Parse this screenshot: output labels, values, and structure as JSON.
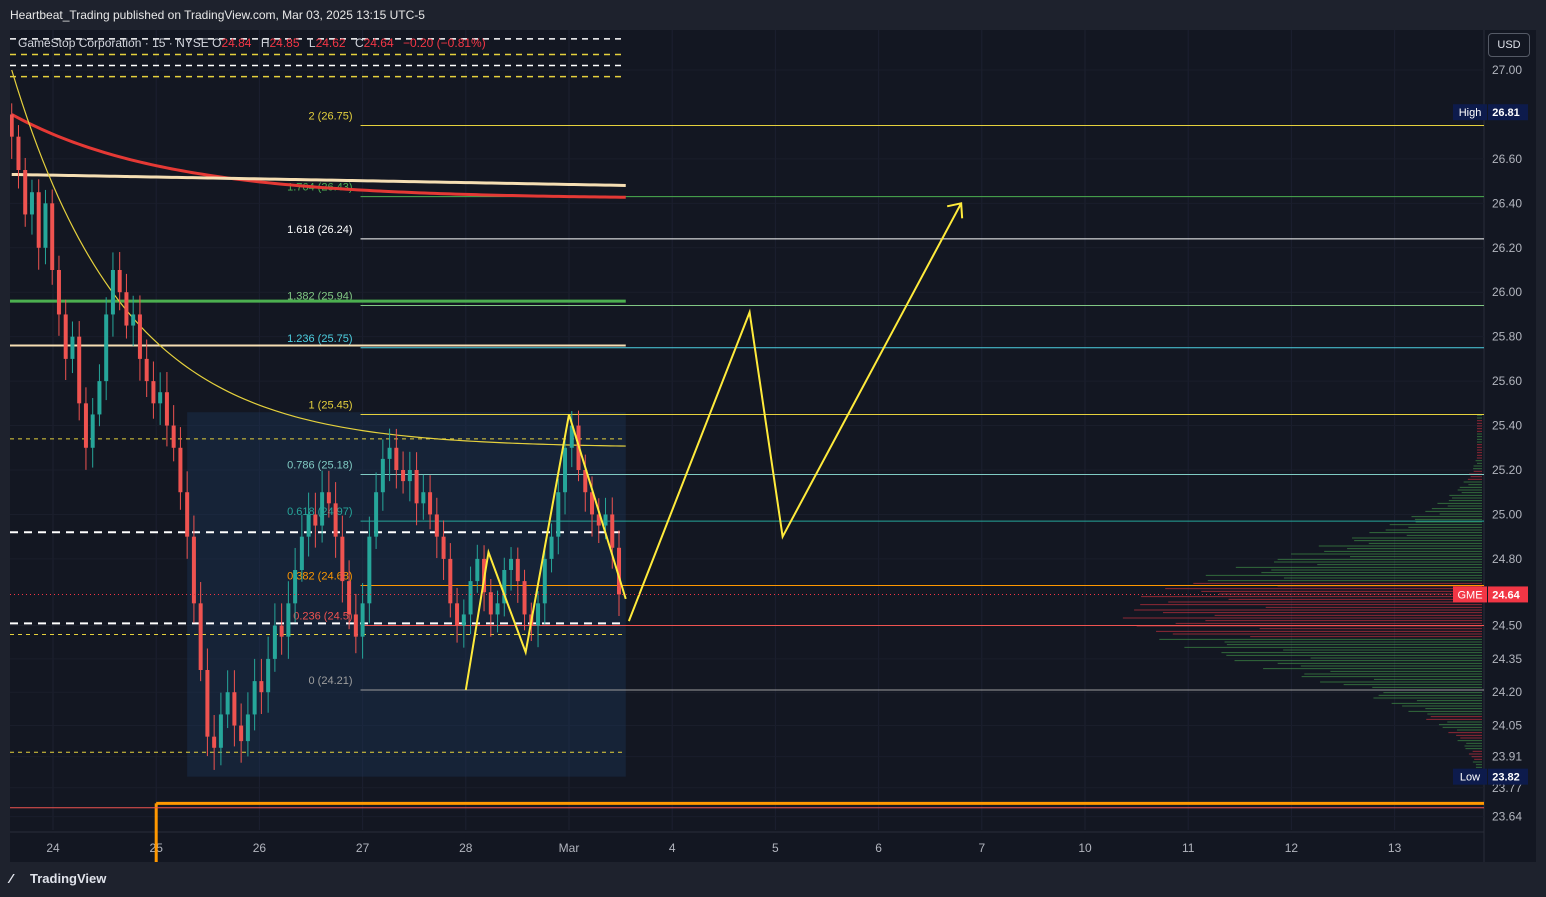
{
  "header": {
    "publish_text": "Heartbeat_Trading published on TradingView.com, Mar 03, 2025 13:15 UTC-5"
  },
  "legend": {
    "symbol_text": "GameStop Corporation · 15 · NYSE",
    "o_key": "O",
    "o_val": "24.84",
    "h_key": "H",
    "h_val": "24.85",
    "l_key": "L",
    "l_val": "24.62",
    "c_key": "C",
    "c_val": "24.64",
    "change": "−0.20 (−0.81%)"
  },
  "currency": "USD",
  "footer": {
    "logo_text": "TradingView"
  },
  "colors": {
    "background": "#131722",
    "up": "#26a69a",
    "down": "#ef5350",
    "fib_line": "#e5d13d",
    "projection": "#ffeb3b",
    "vwap_red": "#e53935",
    "ma_cream": "#f5deb3",
    "green_level": "#4caf50",
    "orange_level": "#ff9800"
  },
  "chart_data": {
    "type": "candlestick",
    "symbol": "GME",
    "interval": "15",
    "exchange": "NYSE",
    "ylim": [
      23.58,
      27.18
    ],
    "x_ticks": [
      {
        "label": "24",
        "day": 0
      },
      {
        "label": "25",
        "day": 1
      },
      {
        "label": "26",
        "day": 2
      },
      {
        "label": "27",
        "day": 3
      },
      {
        "label": "28",
        "day": 4
      },
      {
        "label": "Mar",
        "day": 5
      },
      {
        "label": "4",
        "day": 6
      },
      {
        "label": "5",
        "day": 7
      },
      {
        "label": "6",
        "day": 8
      },
      {
        "label": "7",
        "day": 9
      },
      {
        "label": "10",
        "day": 10
      },
      {
        "label": "11",
        "day": 11
      },
      {
        "label": "12",
        "day": 12
      },
      {
        "label": "13",
        "day": 13
      }
    ],
    "y_ticks": [
      "27.00",
      "26.60",
      "26.40",
      "26.20",
      "26.00",
      "25.80",
      "25.60",
      "25.40",
      "25.20",
      "25.00",
      "24.80",
      "24.50",
      "24.35",
      "24.20",
      "24.05",
      "23.91",
      "23.77",
      "23.64"
    ],
    "price_labels": [
      {
        "name": "High",
        "value": "26.81",
        "color": "#0d1b4c"
      },
      {
        "name": "GME",
        "value": "24.64",
        "color": "#f23645"
      },
      {
        "name": "Low",
        "value": "23.82",
        "color": "#0d1b4c"
      }
    ],
    "fib_levels": [
      {
        "label": "2 (26.75)",
        "ratio": "2",
        "price": 26.75,
        "color": "#e5d13d"
      },
      {
        "label": "1.764 (26.43)",
        "ratio": "1.764",
        "price": 26.43,
        "color": "#4caf50"
      },
      {
        "label": "1.618 (26.24)",
        "ratio": "1.618",
        "price": 26.24,
        "color": "#ffffff"
      },
      {
        "label": "1.382 (25.94)",
        "ratio": "1.382",
        "price": 25.94,
        "color": "#81c784"
      },
      {
        "label": "1.236 (25.75)",
        "ratio": "1.236",
        "price": 25.75,
        "color": "#4dd0e1"
      },
      {
        "label": "1 (25.45)",
        "ratio": "1",
        "price": 25.45,
        "color": "#e5d13d"
      },
      {
        "label": "0.786 (25.18)",
        "ratio": "0.786",
        "price": 25.18,
        "color": "#80cbc4"
      },
      {
        "label": "0.618 (24.97)",
        "ratio": "0.618",
        "price": 24.97,
        "color": "#26a69a"
      },
      {
        "label": "0.382 (24.68)",
        "ratio": "0.382",
        "price": 24.68,
        "color": "#ff9800"
      },
      {
        "label": "0.236 (24.5)",
        "ratio": "0.236",
        "price": 24.5,
        "color": "#ef5350"
      },
      {
        "label": "0 (24.21)",
        "ratio": "0",
        "price": 24.21,
        "color": "#9e9e9e"
      }
    ],
    "horizontal_levels": [
      {
        "name": "green-level",
        "price": 25.96,
        "color": "#4caf50"
      },
      {
        "name": "cream-level",
        "price": 25.76,
        "color": "#f5deb3"
      },
      {
        "name": "orange-level",
        "price": 23.7,
        "color": "#ff9800"
      },
      {
        "name": "white-dash-upper",
        "price": 24.92,
        "color": "#ffffff"
      },
      {
        "name": "white-dash-lower",
        "price": 24.51,
        "color": "#ffffff"
      }
    ],
    "projection_path": [
      {
        "day": 5.58,
        "price": 24.52
      },
      {
        "day": 6.75,
        "price": 25.91
      },
      {
        "day": 7.07,
        "price": 24.9
      },
      {
        "day": 8.8,
        "price": 26.4
      }
    ],
    "zigzag_path": [
      {
        "day": 4.0,
        "price": 24.21
      },
      {
        "day": 4.22,
        "price": 24.83
      },
      {
        "day": 4.58,
        "price": 24.38
      },
      {
        "day": 5.0,
        "price": 25.45
      },
      {
        "day": 5.55,
        "price": 24.62
      }
    ],
    "candles_close": [
      26.7,
      26.55,
      26.35,
      26.45,
      26.2,
      26.4,
      26.1,
      25.9,
      25.7,
      25.8,
      25.5,
      25.3,
      25.45,
      25.6,
      25.9,
      26.1,
      26.0,
      25.85,
      25.9,
      25.7,
      25.6,
      25.5,
      25.55,
      25.4,
      25.3,
      25.1,
      24.9,
      24.6,
      24.3,
      24.0,
      23.95,
      24.1,
      24.2,
      24.05,
      23.98,
      24.1,
      24.25,
      24.2,
      24.35,
      24.5,
      24.45,
      24.6,
      24.75,
      24.9,
      25.0,
      24.95,
      25.1,
      25.05,
      24.9,
      24.7,
      24.55,
      24.45,
      24.6,
      24.9,
      25.1,
      25.25,
      25.3,
      25.2,
      25.15,
      25.2,
      25.05,
      25.1,
      25.0,
      24.9,
      24.8,
      24.6,
      24.5,
      24.55,
      24.7,
      24.8,
      24.65,
      24.55,
      24.6,
      24.75,
      24.8,
      24.7,
      24.55,
      24.5,
      24.6,
      24.8,
      24.9,
      25.1,
      25.3,
      25.4,
      25.2,
      25.1,
      25.0,
      24.95,
      25.0,
      24.85,
      24.64
    ]
  }
}
